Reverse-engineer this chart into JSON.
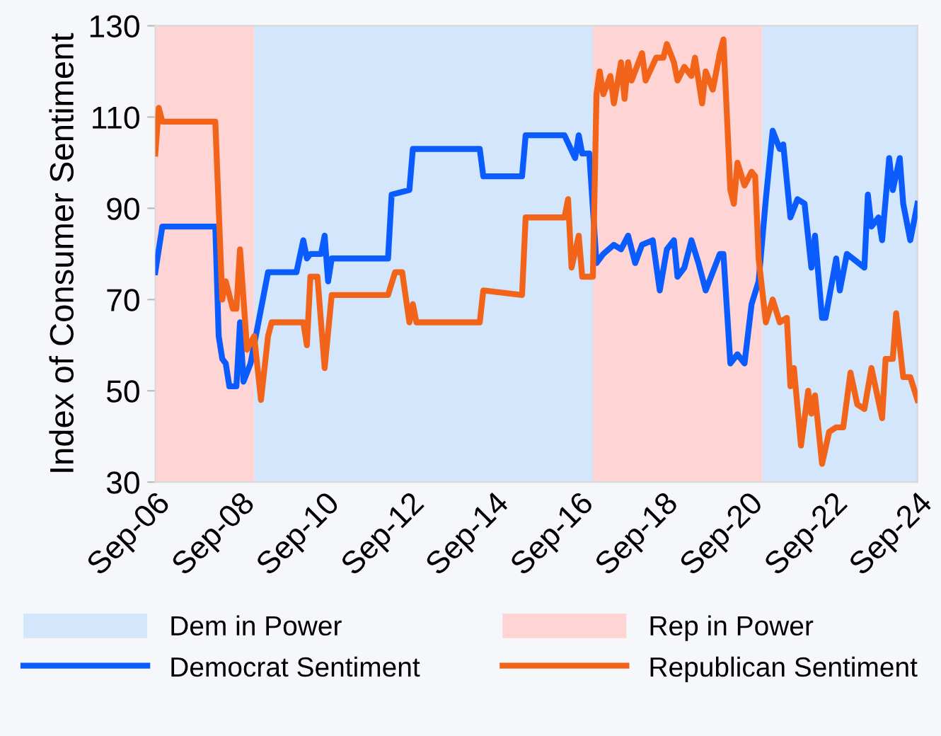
{
  "chart_data": {
    "type": "line",
    "ylabel": "Index of Consumer Sentiment",
    "xlim": [
      "2006-09",
      "2024-09"
    ],
    "xticks": [
      {
        "value": "2006-09",
        "label": "Sep-06"
      },
      {
        "value": "2008-09",
        "label": "Sep-08"
      },
      {
        "value": "2010-09",
        "label": "Sep-10"
      },
      {
        "value": "2012-09",
        "label": "Sep-12"
      },
      {
        "value": "2014-09",
        "label": "Sep-14"
      },
      {
        "value": "2016-09",
        "label": "Sep-16"
      },
      {
        "value": "2018-09",
        "label": "Sep-18"
      },
      {
        "value": "2020-09",
        "label": "Sep-20"
      },
      {
        "value": "2022-09",
        "label": "Sep-22"
      },
      {
        "value": "2024-09",
        "label": "Sep-24"
      }
    ],
    "ylim": [
      30,
      130
    ],
    "yticks": [
      30,
      50,
      70,
      90,
      110,
      130
    ],
    "grid": false,
    "legend": "bottom",
    "line_style": "solid",
    "marker": "none",
    "bands": [
      {
        "axis": "x",
        "from": "2009-01",
        "to": "2017-01",
        "label": "Dem in Power",
        "color": "#d4e6fb"
      },
      {
        "axis": "x",
        "from": "2006-09",
        "to": "2009-01",
        "label": "Rep in Power",
        "color": "#ffd4d4"
      },
      {
        "axis": "x",
        "from": "2017-01",
        "to": "2021-01",
        "color": "#ffd4d4"
      },
      {
        "axis": "x",
        "from": "2021-01",
        "to": "2024-09",
        "color": "#d4e6fb"
      }
    ],
    "series": [
      {
        "name": "Democrat Sentiment",
        "color": "#0a5cff",
        "x": [
          "2006-09",
          "2006-11",
          "2008-02",
          "2008-03",
          "2008-04",
          "2008-05",
          "2008-06",
          "2008-08",
          "2008-09",
          "2008-10",
          "2008-12",
          "2009-05",
          "2010-01",
          "2010-03",
          "2010-04",
          "2010-05",
          "2010-08",
          "2010-09",
          "2010-10",
          "2010-11",
          "2012-03",
          "2012-04",
          "2012-09",
          "2012-10",
          "2014-05",
          "2014-06",
          "2015-05",
          "2015-06",
          "2016-05",
          "2016-08",
          "2016-09",
          "2016-10",
          "2016-12",
          "2017-02",
          "2017-04",
          "2017-07",
          "2017-09",
          "2017-11",
          "2018-01",
          "2018-03",
          "2018-06",
          "2018-08",
          "2018-10",
          "2018-12",
          "2019-01",
          "2019-03",
          "2019-05",
          "2019-07",
          "2019-09",
          "2020-01",
          "2020-02",
          "2020-04",
          "2020-06",
          "2020-08",
          "2020-10",
          "2020-12",
          "2021-02",
          "2021-04",
          "2021-06",
          "2021-07",
          "2021-09",
          "2021-11",
          "2022-01",
          "2022-03",
          "2022-04",
          "2022-06",
          "2022-07",
          "2022-10",
          "2022-11",
          "2023-01",
          "2023-06",
          "2023-07",
          "2023-08",
          "2023-10",
          "2023-11",
          "2024-01",
          "2024-02",
          "2024-04",
          "2024-05",
          "2024-07",
          "2024-09"
        ],
        "values": [
          76,
          86,
          86,
          62,
          57,
          56,
          51,
          51,
          65,
          52,
          56,
          76,
          76,
          83,
          79,
          80,
          80,
          84,
          74,
          79,
          79,
          93,
          94,
          103,
          103,
          97,
          97,
          106,
          106,
          101,
          106,
          102,
          102,
          78,
          80,
          82,
          81,
          84,
          78,
          82,
          83,
          72,
          81,
          83,
          75,
          77,
          83,
          78,
          72,
          80,
          80,
          56,
          58,
          56,
          69,
          74,
          92,
          107,
          103,
          104,
          88,
          92,
          91,
          77,
          84,
          66,
          66,
          79,
          72,
          80,
          77,
          93,
          86,
          88,
          83,
          101,
          94,
          101,
          91,
          83,
          91
        ]
      },
      {
        "name": "Republican Sentiment",
        "color": "#f26419",
        "x": [
          "2006-09",
          "2006-10",
          "2006-11",
          "2008-02",
          "2008-04",
          "2008-05",
          "2008-07",
          "2008-08",
          "2008-09",
          "2008-11",
          "2009-01",
          "2009-03",
          "2009-05",
          "2009-06",
          "2010-03",
          "2010-04",
          "2010-05",
          "2010-07",
          "2010-09",
          "2010-11",
          "2012-03",
          "2012-05",
          "2012-07",
          "2012-09",
          "2012-10",
          "2012-11",
          "2014-05",
          "2014-06",
          "2015-05",
          "2015-06",
          "2016-05",
          "2016-06",
          "2016-07",
          "2016-09",
          "2016-10",
          "2017-01",
          "2017-02",
          "2017-03",
          "2017-04",
          "2017-06",
          "2017-07",
          "2017-09",
          "2017-10",
          "2017-11",
          "2017-12",
          "2018-03",
          "2018-04",
          "2018-07",
          "2018-09",
          "2018-10",
          "2018-12",
          "2019-01",
          "2019-03",
          "2019-05",
          "2019-06",
          "2019-08",
          "2019-09",
          "2019-11",
          "2020-01",
          "2020-02",
          "2020-04",
          "2020-05",
          "2020-06",
          "2020-08",
          "2020-10",
          "2020-11",
          "2020-12",
          "2021-02",
          "2021-04",
          "2021-06",
          "2021-08",
          "2021-09",
          "2021-10",
          "2021-12",
          "2022-02",
          "2022-03",
          "2022-04",
          "2022-06",
          "2022-08",
          "2022-10",
          "2022-12",
          "2023-02",
          "2023-04",
          "2023-06",
          "2023-08",
          "2023-11",
          "2023-12",
          "2024-02",
          "2024-03",
          "2024-05",
          "2024-07",
          "2024-09"
        ],
        "values": [
          102,
          112,
          109,
          109,
          70,
          74,
          68,
          68,
          81,
          59,
          62,
          48,
          62,
          65,
          65,
          60,
          75,
          75,
          55,
          71,
          71,
          76,
          76,
          65,
          69,
          65,
          65,
          72,
          71,
          88,
          88,
          92,
          77,
          84,
          75,
          75,
          115,
          120,
          115,
          119,
          113,
          122,
          114,
          122,
          118,
          124,
          118,
          123,
          123,
          126,
          122,
          118,
          121,
          119,
          123,
          113,
          120,
          116,
          124,
          127,
          94,
          91,
          100,
          95,
          98,
          97,
          79,
          65,
          70,
          65,
          66,
          51,
          55,
          38,
          50,
          45,
          49,
          34,
          41,
          42,
          42,
          54,
          47,
          46,
          55,
          44,
          57,
          57,
          67,
          53,
          53,
          48
        ]
      }
    ]
  }
}
